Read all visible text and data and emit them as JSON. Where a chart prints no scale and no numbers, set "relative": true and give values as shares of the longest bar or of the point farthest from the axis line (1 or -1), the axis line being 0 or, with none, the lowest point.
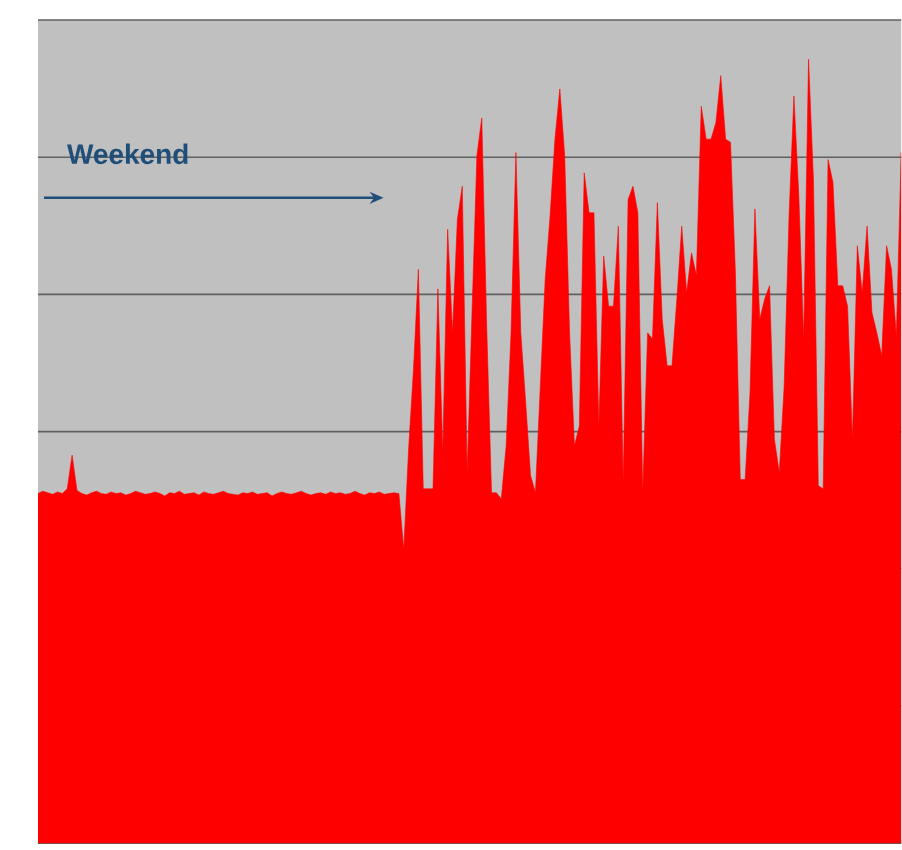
{
  "chart_data": {
    "type": "area",
    "relative": true,
    "grid": "y",
    "annotations": [
      "Weekend"
    ],
    "categories": [
      null,
      null,
      null,
      null,
      null,
      null,
      null,
      null,
      null,
      null,
      null,
      null,
      null,
      null,
      null,
      null,
      null,
      null,
      null,
      null,
      null,
      null,
      null,
      null,
      null,
      null,
      null,
      null,
      null,
      null,
      null,
      null,
      null,
      null,
      null,
      null,
      null,
      null,
      null,
      null,
      null,
      null,
      null,
      null,
      null,
      null,
      null,
      null,
      null,
      null,
      null,
      null,
      null,
      null,
      null,
      null,
      null,
      null,
      null,
      null,
      null,
      null,
      null,
      null,
      null,
      null,
      null,
      null,
      null,
      null,
      null,
      null,
      null,
      null,
      null,
      null,
      null,
      null,
      null,
      null,
      null,
      null,
      null,
      null,
      null,
      null,
      null,
      null,
      null,
      null,
      null,
      null,
      null,
      null,
      null,
      null,
      null,
      null,
      null,
      null,
      null,
      null,
      null,
      null,
      null,
      null,
      null,
      null,
      null,
      null,
      null,
      null,
      null,
      null,
      null,
      null,
      null,
      null,
      null,
      null,
      null,
      null,
      null,
      null,
      null,
      null,
      null,
      null,
      null,
      null,
      null,
      null,
      null,
      null,
      null,
      null,
      null,
      null,
      null,
      null,
      null,
      null,
      null,
      null,
      null,
      null,
      null,
      null,
      null,
      null,
      null,
      null,
      null,
      null,
      null,
      null,
      null,
      null,
      null,
      null,
      null,
      null,
      null,
      null,
      null,
      null,
      null,
      null,
      null,
      null,
      null,
      null,
      null,
      null,
      null,
      null,
      null,
      null
    ],
    "series": [
      {
        "color": "#ff0000",
        "values": [
          0.446,
          0.449,
          0.447,
          0.445,
          0.448,
          0.446,
          0.452,
          0.495,
          0.45,
          0.446,
          0.444,
          0.447,
          0.449,
          0.446,
          0.445,
          0.448,
          0.446,
          0.447,
          0.444,
          0.446,
          0.449,
          0.447,
          0.445,
          0.446,
          0.448,
          0.446,
          0.443,
          0.447,
          0.446,
          0.449,
          0.445,
          0.446,
          0.447,
          0.444,
          0.448,
          0.446,
          0.445,
          0.447,
          0.449,
          0.446,
          0.445,
          0.444,
          0.447,
          0.446,
          0.448,
          0.445,
          0.446,
          0.447,
          0.443,
          0.446,
          0.448,
          0.446,
          0.445,
          0.447,
          0.449,
          0.446,
          0.444,
          0.446,
          0.447,
          0.445,
          0.448,
          0.446,
          0.447,
          0.445,
          0.446,
          0.449,
          0.446,
          0.444,
          0.447,
          0.446,
          0.448,
          0.445,
          0.446,
          0.447,
          0.446,
          0.375,
          0.503,
          0.605,
          0.732,
          0.452,
          0.452,
          0.452,
          0.707,
          0.498,
          0.783,
          0.651,
          0.796,
          0.838,
          0.473,
          0.677,
          0.877,
          0.925,
          0.66,
          0.447,
          0.447,
          0.439,
          0.507,
          0.651,
          0.881,
          0.651,
          0.562,
          0.469,
          0.447,
          0.583,
          0.719,
          0.8,
          0.898,
          0.962,
          0.877,
          0.651,
          0.507,
          0.532,
          0.855,
          0.804,
          0.804,
          0.532,
          0.749,
          0.685,
          0.685,
          0.787,
          0.46,
          0.821,
          0.838,
          0.804,
          0.447,
          0.651,
          0.643,
          0.817,
          0.668,
          0.609,
          0.609,
          0.694,
          0.787,
          0.702,
          0.753,
          0.724,
          0.94,
          0.898,
          0.898,
          0.919,
          0.979,
          0.898,
          0.894,
          0.728,
          0.464,
          0.464,
          0.575,
          0.809,
          0.668,
          0.694,
          0.711,
          0.515,
          0.473,
          0.583,
          0.8,
          0.953,
          0.826,
          0.643,
          1.0,
          0.847,
          0.456,
          0.452,
          0.872,
          0.843,
          0.711,
          0.711,
          0.685,
          0.515,
          0.762,
          0.702,
          0.787,
          0.677,
          0.651,
          0.622,
          0.762,
          0.732,
          0.647,
          0.881
        ]
      }
    ]
  }
}
